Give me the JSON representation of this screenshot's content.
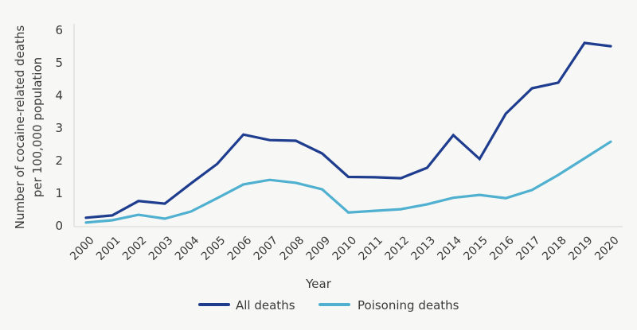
{
  "chart_data": {
    "type": "line",
    "title": "",
    "xlabel": "Year",
    "ylabel": "Number of cocaine-related deaths per 100,000 population",
    "ylabel_lines": [
      "Number of cocaine-related deaths",
      "per 100,000 population"
    ],
    "ylim": [
      0,
      6
    ],
    "yticks": [
      0,
      1,
      2,
      3,
      4,
      5,
      6
    ],
    "grid": false,
    "legend_position": "bottom-center",
    "x": [
      "2000",
      "2001",
      "2002",
      "2003",
      "2004",
      "2005",
      "2006",
      "2007",
      "2008",
      "2009",
      "2010",
      "2011",
      "2012",
      "2013",
      "2014",
      "2015",
      "2016",
      "2017",
      "2018",
      "2019",
      "2020"
    ],
    "series": [
      {
        "name": "All deaths",
        "color": "#1f3d8f",
        "values": [
          0.25,
          0.32,
          0.76,
          0.68,
          1.3,
          1.9,
          2.8,
          2.63,
          2.61,
          2.22,
          1.5,
          1.49,
          1.46,
          1.78,
          2.78,
          2.05,
          3.44,
          4.22,
          4.39,
          5.61,
          5.51
        ]
      },
      {
        "name": "Poisoning deaths",
        "color": "#4fb0d0",
        "values": [
          0.1,
          0.17,
          0.34,
          0.22,
          0.44,
          0.85,
          1.27,
          1.41,
          1.32,
          1.12,
          0.41,
          0.46,
          0.51,
          0.66,
          0.86,
          0.95,
          0.85,
          1.1,
          1.56,
          2.07,
          2.58
        ]
      }
    ]
  }
}
